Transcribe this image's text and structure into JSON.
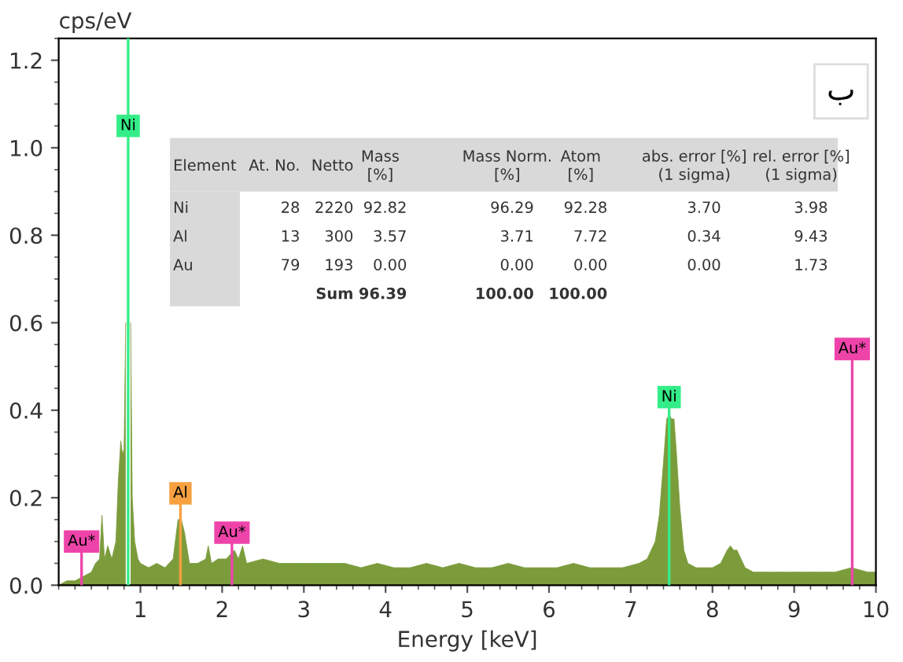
{
  "chart_data": [
    {
      "type": "area",
      "xlabel": "Energy [keV]",
      "ylabel": "cps/eV",
      "color": "#7c9c3c",
      "x": [
        0.0,
        0.1,
        0.2,
        0.3,
        0.4,
        0.45,
        0.5,
        0.53,
        0.56,
        0.6,
        0.65,
        0.7,
        0.73,
        0.76,
        0.78,
        0.8,
        0.82,
        0.84,
        0.86,
        0.88,
        0.9,
        0.93,
        0.97,
        1.0,
        1.1,
        1.2,
        1.3,
        1.4,
        1.46,
        1.5,
        1.54,
        1.6,
        1.7,
        1.8,
        1.83,
        1.87,
        1.95,
        2.05,
        2.15,
        2.2,
        2.25,
        2.3,
        2.5,
        2.7,
        2.9,
        3.1,
        3.3,
        3.5,
        3.7,
        3.9,
        4.1,
        4.3,
        4.5,
        4.7,
        4.9,
        5.1,
        5.3,
        5.5,
        5.7,
        5.9,
        6.1,
        6.3,
        6.5,
        6.7,
        6.9,
        7.1,
        7.2,
        7.3,
        7.35,
        7.4,
        7.44,
        7.47,
        7.5,
        7.53,
        7.56,
        7.6,
        7.65,
        7.7,
        7.8,
        7.9,
        8.0,
        8.1,
        8.18,
        8.22,
        8.26,
        8.3,
        8.35,
        8.4,
        8.5,
        8.7,
        8.9,
        9.1,
        9.3,
        9.5,
        9.7,
        9.9,
        10.0
      ],
      "values": [
        0.0,
        0.01,
        0.01,
        0.02,
        0.03,
        0.05,
        0.06,
        0.16,
        0.06,
        0.09,
        0.06,
        0.1,
        0.24,
        0.33,
        0.3,
        0.31,
        0.6,
        null,
        null,
        0.6,
        0.2,
        0.1,
        0.06,
        0.05,
        0.04,
        0.05,
        0.04,
        0.06,
        0.15,
        0.15,
        0.12,
        0.05,
        0.05,
        0.06,
        0.09,
        0.05,
        0.06,
        0.06,
        0.08,
        0.06,
        0.09,
        0.05,
        0.06,
        0.05,
        0.05,
        0.05,
        0.05,
        0.05,
        0.04,
        0.05,
        0.04,
        0.04,
        0.05,
        0.04,
        0.05,
        0.04,
        0.04,
        0.05,
        0.04,
        0.04,
        0.04,
        0.05,
        0.04,
        0.04,
        0.04,
        0.05,
        0.06,
        0.1,
        0.16,
        0.28,
        0.38,
        0.39,
        0.38,
        0.38,
        0.3,
        0.18,
        0.08,
        0.05,
        0.04,
        0.04,
        0.04,
        0.05,
        0.08,
        0.09,
        0.08,
        0.08,
        0.06,
        0.04,
        0.03,
        0.03,
        0.03,
        0.03,
        0.03,
        0.03,
        0.04,
        0.03,
        0.03
      ],
      "xlim": [
        0.0,
        10.0
      ],
      "ylim": [
        0.0,
        1.25
      ],
      "xticks": [
        1,
        2,
        3,
        4,
        5,
        6,
        7,
        8,
        9,
        10
      ],
      "yticks": [
        {
          "value": 0,
          "label": "0.0"
        },
        {
          "value": 0.2,
          "label": "0.2"
        },
        {
          "value": 0.4,
          "label": "0.4"
        },
        {
          "value": 0.6,
          "label": "0.6"
        },
        {
          "value": 0.8,
          "label": "0.8"
        },
        {
          "value": 1.0,
          "label": "1.0"
        },
        {
          "value": 1.2,
          "label": "1.2"
        }
      ],
      "ref_lines": [
        {
          "axis": "x",
          "value": 0.85,
          "label": "Ni",
          "color": "#33ee88"
        },
        {
          "axis": "x",
          "value": 7.47,
          "label": "Ni",
          "color": "#33ee88"
        },
        {
          "axis": "x",
          "value": 1.49,
          "label": "Al",
          "color": "#f7a040"
        },
        {
          "axis": "x",
          "value": 2.12,
          "label": "Au*",
          "color": "#ee44aa"
        },
        {
          "axis": "x",
          "value": 0.28,
          "label": "Au*",
          "color": "#ee44aa"
        },
        {
          "axis": "x",
          "value": 9.71,
          "label": "Au*",
          "color": "#ee44aa"
        }
      ],
      "annotations": [
        "ب"
      ]
    },
    {
      "type": "other",
      "annotations": [
        "Element",
        "At. No.",
        "Netto",
        "Mass\n[%]",
        "Mass Norm.\n[%]",
        "Atom\n[%]",
        "abs. error [%]\n(1 sigma)",
        "rel. error [%]\n(1 sigma)",
        "Ni",
        "28",
        "2220",
        "92.82",
        "96.29",
        "92.28",
        "3.70",
        "3.98",
        "Al",
        "13",
        "300",
        "3.57",
        "3.71",
        "7.72",
        "0.34",
        "9.43",
        "Au",
        "79",
        "193",
        "0.00",
        "0.00",
        "0.00",
        "0.00",
        "1.73",
        "Sum",
        "96.39",
        "100.00",
        "100.00"
      ]
    }
  ]
}
